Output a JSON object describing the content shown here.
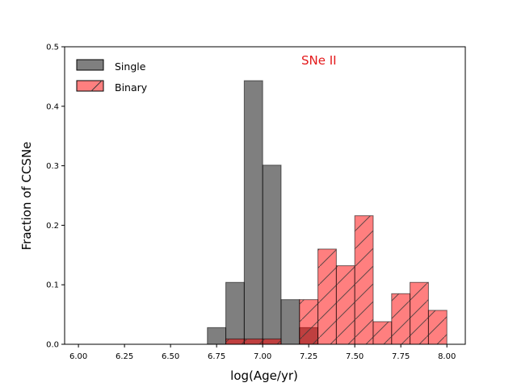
{
  "chart_data": {
    "type": "bar",
    "subtype": "overlaid-histogram",
    "annotation": "SNe II",
    "xlabel": "log(Age/yr)",
    "ylabel": "Fraction of CCSNe",
    "xlim": [
      5.925,
      8.1
    ],
    "ylim": [
      0,
      0.5
    ],
    "xticks": [
      "6.00",
      "6.25",
      "6.50",
      "6.75",
      "7.00",
      "7.25",
      "7.50",
      "7.75",
      "8.00"
    ],
    "yticks": [
      "0.0",
      "0.1",
      "0.2",
      "0.3",
      "0.4",
      "0.5"
    ],
    "bin_edges": [
      6.7,
      6.8,
      6.9,
      7.0,
      7.1,
      7.2,
      7.3,
      7.4,
      7.5,
      7.6,
      7.7,
      7.8,
      7.9,
      8.0
    ],
    "legend_position": "top-left",
    "series": [
      {
        "name": "Single",
        "color": "#000000",
        "fill_opacity": 0.5,
        "hatch": "none",
        "values": [
          0.028,
          0.104,
          0.443,
          0.301,
          0.075,
          0.028,
          0.0,
          0.0,
          0.0,
          0.0,
          0.0,
          0.0,
          0.0
        ]
      },
      {
        "name": "Binary",
        "color": "#ff0000",
        "fill_opacity": 0.5,
        "hatch": "diagonal",
        "values": [
          0.0,
          0.009,
          0.009,
          0.009,
          0.0,
          0.075,
          0.16,
          0.132,
          0.216,
          0.038,
          0.085,
          0.104,
          0.057
        ]
      }
    ],
    "colors": {
      "annotation": "#e41a1c",
      "axis": "#000000"
    }
  }
}
